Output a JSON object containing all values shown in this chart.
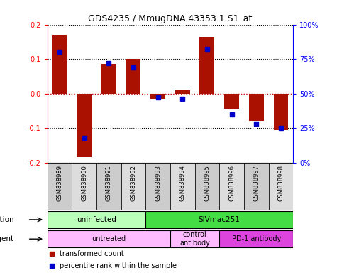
{
  "title": "GDS4235 / MmugDNA.43353.1.S1_at",
  "samples": [
    "GSM838989",
    "GSM838990",
    "GSM838991",
    "GSM838992",
    "GSM838993",
    "GSM838994",
    "GSM838995",
    "GSM838996",
    "GSM838997",
    "GSM838998"
  ],
  "red_bars": [
    0.17,
    -0.185,
    0.085,
    0.1,
    -0.015,
    0.01,
    0.165,
    -0.045,
    -0.08,
    -0.105
  ],
  "blue_pct": [
    80,
    18,
    72,
    69,
    47,
    46,
    82,
    35,
    28,
    25
  ],
  "ylim": [
    -0.2,
    0.2
  ],
  "yticks": [
    -0.2,
    -0.1,
    0.0,
    0.1,
    0.2
  ],
  "right_yticks": [
    0,
    25,
    50,
    75,
    100
  ],
  "right_ylabels": [
    "0%",
    "25%",
    "50%",
    "75%",
    "100%"
  ],
  "bar_color": "#aa1100",
  "blue_color": "#0000cc",
  "bg_color": "#ffffff",
  "red_dotted_color": "#cc0000",
  "infection_groups": [
    {
      "label": "uninfected",
      "start": 0,
      "end": 4,
      "color": "#bbffbb"
    },
    {
      "label": "SIVmac251",
      "start": 4,
      "end": 10,
      "color": "#44dd44"
    }
  ],
  "agent_groups": [
    {
      "label": "untreated",
      "start": 0,
      "end": 5,
      "color": "#ffbbff"
    },
    {
      "label": "control\nantibody",
      "start": 5,
      "end": 7,
      "color": "#ffbbff"
    },
    {
      "label": "PD-1 antibody",
      "start": 7,
      "end": 10,
      "color": "#dd44dd"
    }
  ],
  "legend_items": [
    {
      "label": "transformed count",
      "color": "#aa1100"
    },
    {
      "label": "percentile rank within the sample",
      "color": "#0000cc"
    }
  ]
}
